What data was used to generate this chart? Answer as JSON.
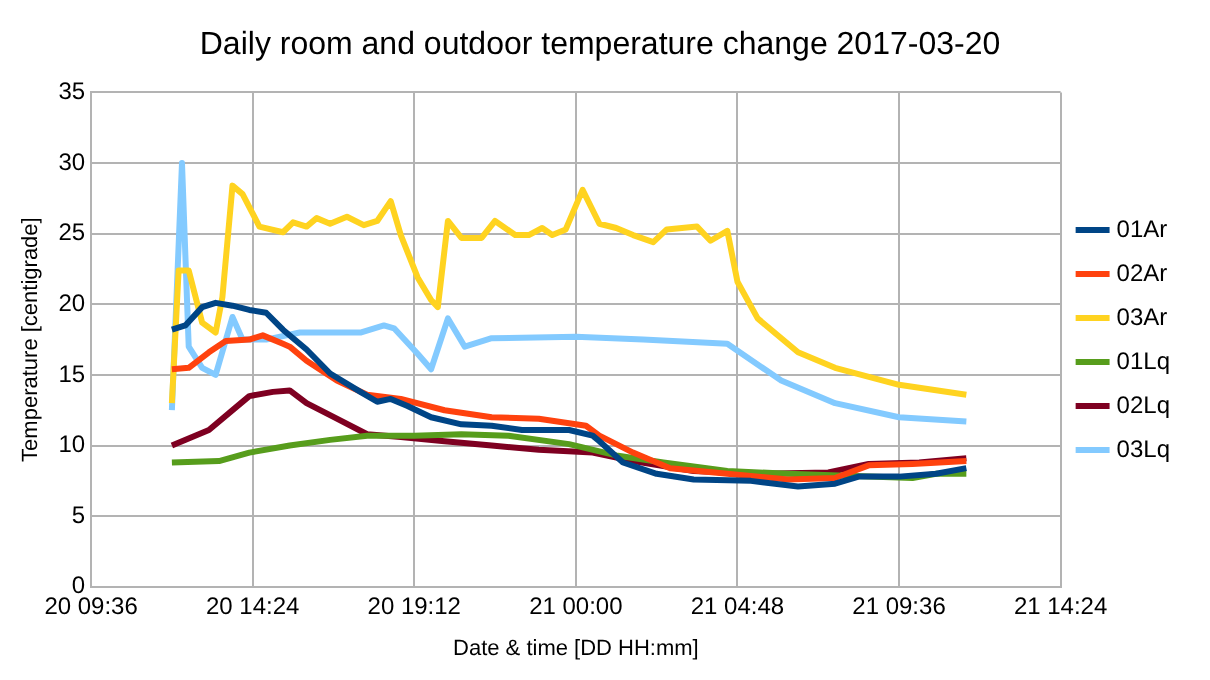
{
  "chart_data": {
    "type": "line",
    "title": "Daily room and outdoor temperature change 2017-03-20",
    "xlabel": "Date & time [DD HH:mm]",
    "ylabel": "Temperature [centigrade]",
    "xlim": [
      "2017-03-20T09:36",
      "2017-03-21T14:24"
    ],
    "xticks": [
      {
        "value": "2017-03-20T09:36",
        "label": "20 09:36"
      },
      {
        "value": "2017-03-20T14:24",
        "label": "20 14:24"
      },
      {
        "value": "2017-03-20T19:12",
        "label": "20 19:12"
      },
      {
        "value": "2017-03-21T00:00",
        "label": "21 00:00"
      },
      {
        "value": "2017-03-21T04:48",
        "label": "21 04:48"
      },
      {
        "value": "2017-03-21T09:36",
        "label": "21 09:36"
      },
      {
        "value": "2017-03-21T14:24",
        "label": "21 14:24"
      }
    ],
    "ylim": [
      0,
      35
    ],
    "yticks": [
      0,
      5,
      10,
      15,
      20,
      25,
      30,
      35
    ],
    "grid": true,
    "legend": "right",
    "marker": "none",
    "line_style": "solid",
    "series": [
      {
        "name": "01Ar",
        "color": "#004586",
        "x": [
          "2017-03-20T12:00",
          "2017-03-20T12:24",
          "2017-03-20T12:54",
          "2017-03-20T13:18",
          "2017-03-20T13:48",
          "2017-03-20T14:18",
          "2017-03-20T14:48",
          "2017-03-20T15:18",
          "2017-03-20T16:00",
          "2017-03-20T16:42",
          "2017-03-20T17:36",
          "2017-03-20T18:06",
          "2017-03-20T18:30",
          "2017-03-20T19:00",
          "2017-03-20T19:42",
          "2017-03-20T20:36",
          "2017-03-20T21:30",
          "2017-03-20T22:24",
          "2017-03-20T23:48",
          "2017-03-21T00:30",
          "2017-03-21T00:42",
          "2017-03-21T01:24",
          "2017-03-21T02:24",
          "2017-03-21T03:30",
          "2017-03-21T05:12",
          "2017-03-21T06:36",
          "2017-03-21T07:42",
          "2017-03-21T08:24",
          "2017-03-21T09:36",
          "2017-03-21T10:42",
          "2017-03-21T11:36"
        ],
        "values": [
          18.2,
          18.5,
          19.8,
          20.1,
          19.9,
          19.6,
          19.4,
          18.2,
          16.8,
          15.1,
          13.8,
          13.1,
          13.3,
          12.8,
          12.0,
          11.5,
          11.4,
          11.1,
          11.1,
          10.7,
          10.3,
          8.8,
          8.0,
          7.6,
          7.5,
          7.1,
          7.3,
          7.8,
          7.8,
          8.0,
          8.4
        ]
      },
      {
        "name": "02Ar",
        "color": "#ff420e",
        "x": [
          "2017-03-20T12:00",
          "2017-03-20T12:30",
          "2017-03-20T13:06",
          "2017-03-20T13:36",
          "2017-03-20T14:18",
          "2017-03-20T14:42",
          "2017-03-20T15:18",
          "2017-03-20T15:30",
          "2017-03-20T16:00",
          "2017-03-20T16:54",
          "2017-03-20T17:48",
          "2017-03-20T18:48",
          "2017-03-20T20:06",
          "2017-03-20T21:30",
          "2017-03-20T22:54",
          "2017-03-21T00:18",
          "2017-03-21T00:42",
          "2017-03-21T01:42",
          "2017-03-21T02:48",
          "2017-03-21T04:30",
          "2017-03-21T06:18",
          "2017-03-21T07:42",
          "2017-03-21T08:42",
          "2017-03-21T10:00",
          "2017-03-21T11:36"
        ],
        "values": [
          15.4,
          15.5,
          16.6,
          17.4,
          17.5,
          17.8,
          17.2,
          17.0,
          16.0,
          14.6,
          13.6,
          13.3,
          12.5,
          12.0,
          11.9,
          11.4,
          10.7,
          9.5,
          8.4,
          8.0,
          7.6,
          7.7,
          8.6,
          8.7,
          8.9
        ]
      },
      {
        "name": "03Ar",
        "color": "#ffd320",
        "x": [
          "2017-03-20T12:00",
          "2017-03-20T12:12",
          "2017-03-20T12:30",
          "2017-03-20T12:54",
          "2017-03-20T13:18",
          "2017-03-20T13:30",
          "2017-03-20T13:48",
          "2017-03-20T14:06",
          "2017-03-20T14:36",
          "2017-03-20T15:18",
          "2017-03-20T15:36",
          "2017-03-20T16:00",
          "2017-03-20T16:18",
          "2017-03-20T16:42",
          "2017-03-20T17:12",
          "2017-03-20T17:42",
          "2017-03-20T18:06",
          "2017-03-20T18:30",
          "2017-03-20T18:48",
          "2017-03-20T19:18",
          "2017-03-20T19:42",
          "2017-03-20T19:54",
          "2017-03-20T20:12",
          "2017-03-20T20:36",
          "2017-03-20T21:12",
          "2017-03-20T21:36",
          "2017-03-20T22:12",
          "2017-03-20T22:36",
          "2017-03-20T23:00",
          "2017-03-20T23:18",
          "2017-03-20T23:42",
          "2017-03-21T00:12",
          "2017-03-21T00:42",
          "2017-03-21T01:12",
          "2017-03-21T01:42",
          "2017-03-21T02:18",
          "2017-03-21T02:42",
          "2017-03-21T03:36",
          "2017-03-21T04:00",
          "2017-03-21T04:30",
          "2017-03-21T04:48",
          "2017-03-21T05:24",
          "2017-03-21T06:36",
          "2017-03-21T07:42",
          "2017-03-21T09:36",
          "2017-03-21T11:36"
        ],
        "values": [
          13.0,
          22.4,
          22.4,
          18.7,
          18.0,
          20.5,
          28.4,
          27.8,
          25.5,
          25.1,
          25.8,
          25.5,
          26.1,
          25.7,
          26.2,
          25.6,
          25.9,
          27.3,
          24.9,
          21.9,
          20.3,
          19.8,
          25.9,
          24.7,
          24.7,
          25.9,
          24.9,
          24.9,
          25.4,
          24.9,
          25.3,
          28.1,
          25.7,
          25.4,
          24.9,
          24.4,
          25.3,
          25.5,
          24.5,
          25.2,
          21.6,
          19.0,
          16.6,
          15.5,
          14.3,
          13.6
        ]
      },
      {
        "name": "01Lq",
        "color": "#579d1c",
        "x": [
          "2017-03-20T12:00",
          "2017-03-20T13:24",
          "2017-03-20T14:18",
          "2017-03-20T15:30",
          "2017-03-20T16:42",
          "2017-03-20T17:48",
          "2017-03-20T19:12",
          "2017-03-20T20:36",
          "2017-03-20T22:00",
          "2017-03-20T23:48",
          "2017-03-21T01:12",
          "2017-03-21T02:36",
          "2017-03-21T04:30",
          "2017-03-21T06:18",
          "2017-03-21T08:42",
          "2017-03-21T10:00",
          "2017-03-21T10:42",
          "2017-03-21T11:36"
        ],
        "values": [
          8.8,
          8.9,
          9.5,
          10.0,
          10.4,
          10.7,
          10.7,
          10.8,
          10.7,
          10.1,
          9.3,
          8.8,
          8.2,
          8.0,
          7.8,
          7.7,
          8.0,
          8.0
        ]
      },
      {
        "name": "02Lq",
        "color": "#7e0021",
        "x": [
          "2017-03-20T12:00",
          "2017-03-20T13:06",
          "2017-03-20T13:54",
          "2017-03-20T14:18",
          "2017-03-20T15:00",
          "2017-03-20T15:30",
          "2017-03-20T16:00",
          "2017-03-20T16:54",
          "2017-03-20T17:48",
          "2017-03-20T18:48",
          "2017-03-20T20:06",
          "2017-03-20T21:30",
          "2017-03-20T22:54",
          "2017-03-21T00:30",
          "2017-03-21T01:42",
          "2017-03-21T03:30",
          "2017-03-21T05:24",
          "2017-03-21T07:30",
          "2017-03-21T08:42",
          "2017-03-21T10:12",
          "2017-03-21T11:36"
        ],
        "values": [
          10.0,
          11.1,
          12.7,
          13.5,
          13.8,
          13.9,
          13.0,
          11.9,
          10.8,
          10.6,
          10.3,
          10.0,
          9.7,
          9.5,
          8.9,
          8.2,
          8.0,
          8.1,
          8.7,
          8.8,
          9.1
        ]
      },
      {
        "name": "03Lq",
        "color": "#83caff",
        "x": [
          "2017-03-20T12:00",
          "2017-03-20T12:18",
          "2017-03-20T12:30",
          "2017-03-20T12:54",
          "2017-03-20T13:18",
          "2017-03-20T13:48",
          "2017-03-20T14:06",
          "2017-03-20T14:48",
          "2017-03-20T15:48",
          "2017-03-20T17:36",
          "2017-03-20T18:18",
          "2017-03-20T18:36",
          "2017-03-20T19:18",
          "2017-03-20T19:42",
          "2017-03-20T20:12",
          "2017-03-20T20:42",
          "2017-03-20T21:30",
          "2017-03-21T00:00",
          "2017-03-21T02:00",
          "2017-03-21T04:30",
          "2017-03-21T06:06",
          "2017-03-21T07:42",
          "2017-03-21T09:36",
          "2017-03-21T11:36"
        ],
        "values": [
          12.5,
          30.0,
          17.0,
          15.5,
          15.0,
          19.1,
          17.5,
          17.5,
          18.0,
          18.0,
          18.5,
          18.3,
          16.5,
          15.4,
          19.0,
          17.0,
          17.6,
          17.7,
          17.5,
          17.2,
          14.6,
          13.0,
          12.0,
          11.7
        ]
      }
    ]
  }
}
